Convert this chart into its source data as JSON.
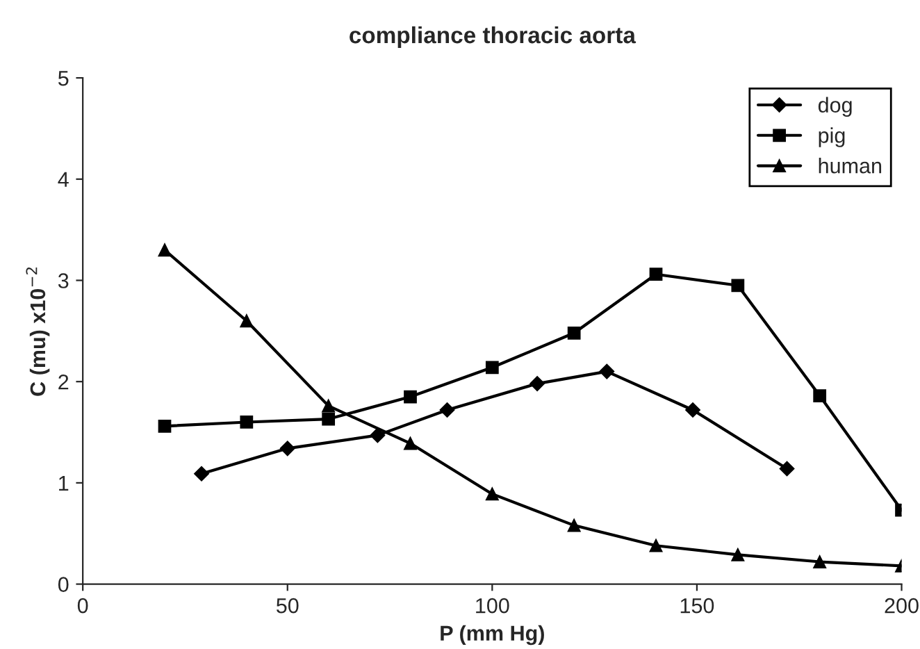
{
  "chart_data": {
    "type": "line",
    "title": "compliance thoracic aorta",
    "xlabel": "P (mm Hg)",
    "ylabel": "C (mu) x10$^{−2}$",
    "xlim": [
      0,
      200
    ],
    "xticks": [
      0,
      50,
      100,
      150,
      200
    ],
    "ylim": [
      0,
      5
    ],
    "yticks": [
      0,
      1,
      2,
      3,
      4,
      5
    ],
    "grid": false,
    "legend": "top right",
    "series": [
      {
        "name": "dog",
        "color": "#000000",
        "marker": "diamond",
        "x": [
          29,
          50,
          72,
          89,
          111,
          128,
          149,
          172
        ],
        "values": [
          1.09,
          1.34,
          1.47,
          1.72,
          1.98,
          2.1,
          1.72,
          1.14
        ]
      },
      {
        "name": "pig",
        "color": "#000000",
        "marker": "square",
        "x": [
          20,
          40,
          60,
          80,
          100,
          120,
          140,
          160,
          180,
          200
        ],
        "values": [
          1.56,
          1.6,
          1.63,
          1.85,
          2.14,
          2.48,
          3.06,
          2.95,
          1.86,
          0.73
        ]
      },
      {
        "name": "human",
        "color": "#000000",
        "marker": "triangle",
        "x": [
          20,
          40,
          60,
          80,
          100,
          120,
          140,
          160,
          180,
          200
        ],
        "values": [
          3.3,
          2.6,
          1.76,
          1.39,
          0.89,
          0.58,
          0.38,
          0.29,
          0.22,
          0.18
        ]
      }
    ]
  }
}
